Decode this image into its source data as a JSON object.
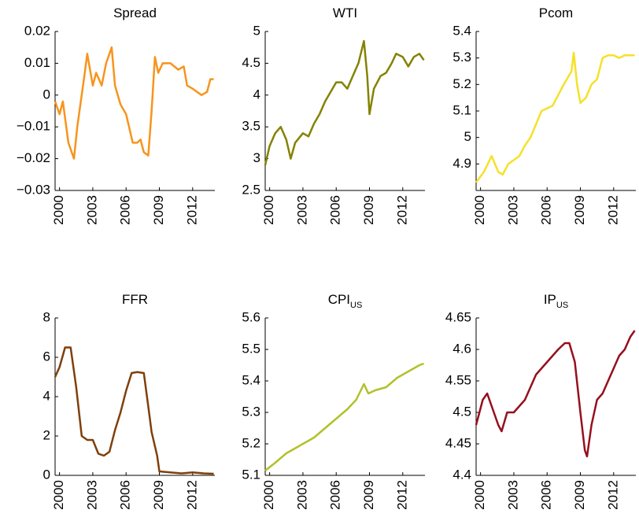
{
  "chart_data": [
    {
      "type": "line",
      "title": "Spread",
      "color": "#f7941d",
      "x": [
        1999.6,
        2000,
        2000.3,
        2000.8,
        2001.3,
        2001.6,
        2002.2,
        2002.5,
        2003,
        2003.3,
        2003.8,
        2004.2,
        2004.7,
        2005,
        2005.5,
        2006,
        2006.6,
        2007,
        2007.3,
        2007.6,
        2008,
        2008.3,
        2008.6,
        2008.9,
        2009.3,
        2010,
        2010.7,
        2011.2,
        2011.5,
        2012,
        2012.8,
        2013.3,
        2013.6,
        2013.9
      ],
      "values": [
        -0.002,
        -0.006,
        -0.002,
        -0.015,
        -0.02,
        -0.01,
        0.005,
        0.013,
        0.003,
        0.007,
        0.003,
        0.01,
        0.015,
        0.003,
        -0.003,
        -0.006,
        -0.015,
        -0.015,
        -0.014,
        -0.018,
        -0.019,
        -0.005,
        0.012,
        0.007,
        0.01,
        0.01,
        0.008,
        0.009,
        0.003,
        0.002,
        0.0,
        0.001,
        0.005,
        0.005
      ],
      "xlim": [
        1999.6,
        2014
      ],
      "xticks": [
        2000,
        2003,
        2006,
        2009,
        2012
      ],
      "ylim": [
        -0.03,
        0.02
      ],
      "yticks": [
        {
          "value": -0.03,
          "label": "−0.03"
        },
        {
          "value": -0.02,
          "label": "−0.02"
        },
        {
          "value": -0.01,
          "label": "−0.01"
        },
        0,
        0.01,
        0.02
      ]
    },
    {
      "type": "line",
      "title": "WTI",
      "color": "#858200",
      "x": [
        1999.6,
        2000,
        2000.5,
        2001,
        2001.5,
        2001.9,
        2002.3,
        2003,
        2003.5,
        2004,
        2004.5,
        2005,
        2005.5,
        2006,
        2006.5,
        2007,
        2007.5,
        2008,
        2008.5,
        2008.8,
        2009,
        2009.4,
        2010,
        2010.5,
        2011,
        2011.4,
        2012,
        2012.5,
        2013,
        2013.5,
        2013.9
      ],
      "values": [
        2.9,
        3.2,
        3.4,
        3.5,
        3.3,
        3.0,
        3.25,
        3.4,
        3.35,
        3.55,
        3.7,
        3.9,
        4.05,
        4.2,
        4.2,
        4.1,
        4.3,
        4.5,
        4.85,
        4.3,
        3.7,
        4.1,
        4.3,
        4.35,
        4.5,
        4.65,
        4.6,
        4.45,
        4.6,
        4.65,
        4.55
      ],
      "xlim": [
        1999.6,
        2014
      ],
      "xticks": [
        2000,
        2003,
        2006,
        2009,
        2012
      ],
      "ylim": [
        2.5,
        5
      ],
      "yticks": [
        2.5,
        3,
        3.5,
        4,
        4.5,
        5
      ]
    },
    {
      "type": "line",
      "title": "Pcom",
      "color": "#f5e12a",
      "x": [
        1999.6,
        2000.3,
        2001,
        2001.6,
        2002,
        2002.5,
        2003.5,
        2004,
        2004.5,
        2005,
        2005.5,
        2006,
        2006.5,
        2007,
        2007.5,
        2008.2,
        2008.4,
        2008.7,
        2009,
        2009.5,
        2010,
        2010.5,
        2011,
        2011.5,
        2012,
        2012.5,
        2013,
        2013.5,
        2013.9
      ],
      "values": [
        4.83,
        4.87,
        4.93,
        4.87,
        4.86,
        4.9,
        4.93,
        4.97,
        5.0,
        5.05,
        5.1,
        5.11,
        5.12,
        5.16,
        5.2,
        5.25,
        5.32,
        5.2,
        5.13,
        5.15,
        5.2,
        5.22,
        5.3,
        5.31,
        5.31,
        5.3,
        5.31,
        5.31,
        5.31
      ],
      "xlim": [
        1999.6,
        2014
      ],
      "xticks": [
        2000,
        2003,
        2006,
        2009,
        2012
      ],
      "ylim": [
        4.8,
        5.4
      ],
      "yticks": [
        4.9,
        5,
        5.1,
        5.2,
        5.3,
        5.4
      ]
    },
    {
      "type": "line",
      "title": "FFR",
      "color": "#7f3f0a",
      "x": [
        1999.6,
        2000,
        2000.5,
        2001,
        2001.5,
        2002,
        2002.5,
        2003,
        2003.5,
        2004,
        2004.5,
        2005,
        2005.5,
        2006,
        2006.5,
        2007,
        2007.6,
        2008,
        2008.3,
        2008.8,
        2009,
        2010,
        2011,
        2012,
        2013,
        2013.9
      ],
      "values": [
        5.0,
        5.5,
        6.5,
        6.5,
        4.5,
        2.0,
        1.8,
        1.8,
        1.1,
        1.0,
        1.2,
        2.3,
        3.2,
        4.3,
        5.2,
        5.25,
        5.2,
        3.5,
        2.2,
        1.0,
        0.2,
        0.15,
        0.1,
        0.15,
        0.1,
        0.08
      ],
      "xlim": [
        1999.6,
        2014
      ],
      "xticks": [
        2000,
        2003,
        2006,
        2009,
        2012
      ],
      "ylim": [
        0,
        8
      ],
      "yticks": [
        0,
        2,
        4,
        6,
        8
      ]
    },
    {
      "type": "line",
      "title": "CPI",
      "title_sub": "US",
      "color": "#b2c12a",
      "x": [
        1999.6,
        2000.5,
        2001.5,
        2002,
        2003,
        2004,
        2005,
        2006,
        2007,
        2007.8,
        2008.5,
        2008.9,
        2009.5,
        2010.5,
        2011.5,
        2012.5,
        2013.5,
        2013.9
      ],
      "values": [
        5.115,
        5.14,
        5.17,
        5.18,
        5.2,
        5.22,
        5.25,
        5.28,
        5.31,
        5.34,
        5.39,
        5.36,
        5.37,
        5.38,
        5.41,
        5.43,
        5.45,
        5.455
      ],
      "xlim": [
        1999.6,
        2014
      ],
      "xticks": [
        2000,
        2003,
        2006,
        2009,
        2012
      ],
      "ylim": [
        5.1,
        5.6
      ],
      "yticks": [
        5.1,
        5.2,
        5.3,
        5.4,
        5.5,
        5.6
      ]
    },
    {
      "type": "line",
      "title": "IP",
      "title_sub": "US",
      "color": "#960f1e",
      "x": [
        1999.6,
        2000.2,
        2000.6,
        2001,
        2001.6,
        2001.9,
        2002.4,
        2003,
        2003.5,
        2004,
        2004.5,
        2005,
        2005.5,
        2006,
        2006.5,
        2007,
        2007.6,
        2008,
        2008.5,
        2009,
        2009.4,
        2009.6,
        2010,
        2010.5,
        2011,
        2011.5,
        2012,
        2012.5,
        2013,
        2013.5,
        2013.9
      ],
      "values": [
        4.48,
        4.52,
        4.53,
        4.51,
        4.48,
        4.47,
        4.5,
        4.5,
        4.51,
        4.52,
        4.54,
        4.56,
        4.57,
        4.58,
        4.59,
        4.6,
        4.61,
        4.61,
        4.58,
        4.5,
        4.44,
        4.43,
        4.48,
        4.52,
        4.53,
        4.55,
        4.57,
        4.59,
        4.6,
        4.62,
        4.63
      ],
      "xlim": [
        1999.6,
        2014
      ],
      "xticks": [
        2000,
        2003,
        2006,
        2009,
        2012
      ],
      "ylim": [
        4.4,
        4.65
      ],
      "yticks": [
        4.4,
        4.45,
        4.5,
        4.55,
        4.6,
        4.65
      ]
    }
  ]
}
